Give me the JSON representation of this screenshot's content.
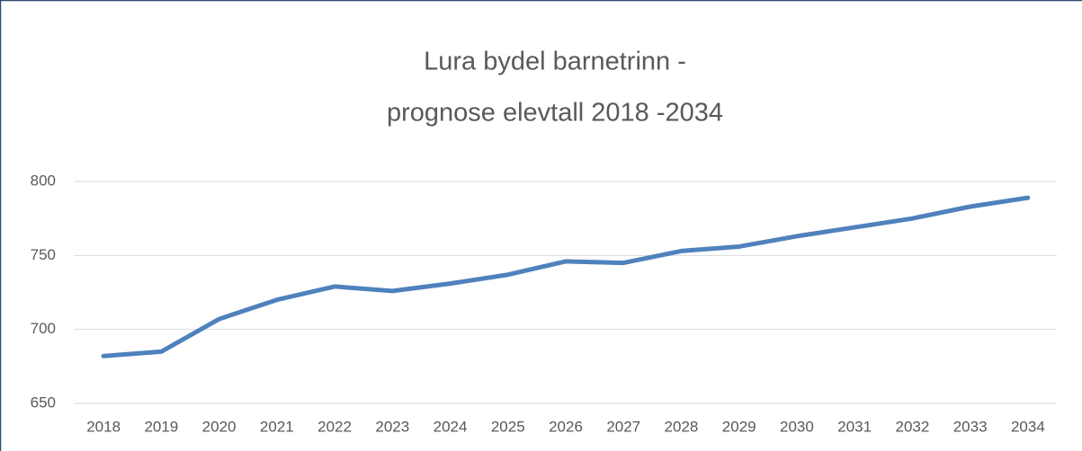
{
  "chart_data": {
    "type": "line",
    "title": [
      "Lura bydel barnetrinn -",
      "prognose elevtall 2018 -2034"
    ],
    "categories": [
      "2018",
      "2019",
      "2020",
      "2021",
      "2022",
      "2023",
      "2024",
      "2025",
      "2026",
      "2027",
      "2028",
      "2029",
      "2030",
      "2031",
      "2032",
      "2033",
      "2034"
    ],
    "series": [
      {
        "color": "#4f81bd",
        "values": [
          682,
          685,
          707,
          720,
          729,
          726,
          731,
          737,
          746,
          745,
          753,
          756,
          763,
          769,
          775,
          783,
          789
        ]
      }
    ],
    "ylim": [
      650,
      800
    ],
    "yticks": [
      650,
      700,
      750,
      800
    ],
    "grid": true
  }
}
